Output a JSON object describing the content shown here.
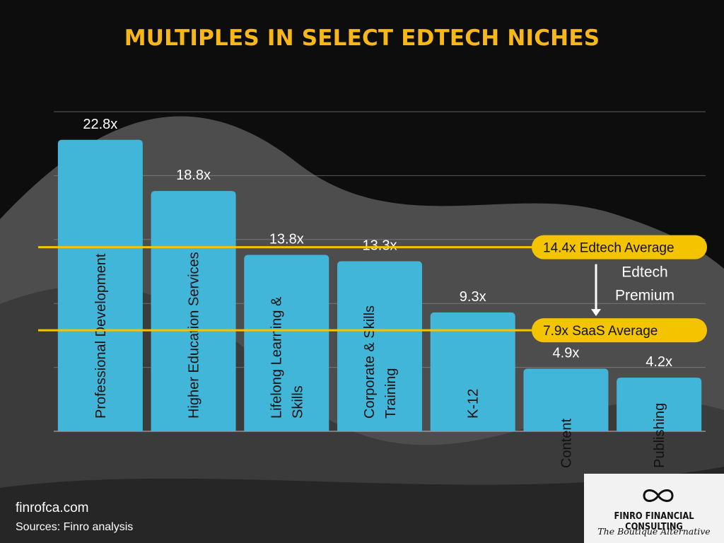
{
  "title": "MULTIPLES IN SELECT EDTECH NICHES",
  "chart_data": {
    "type": "bar",
    "categories": [
      "Professional Development",
      "Higher Education Services",
      "Lifelong Learning & Skills",
      "Corporate & Skills Training",
      "K-12",
      "Content",
      "Publishing"
    ],
    "category_lines": [
      [
        "Professional Development"
      ],
      [
        "Higher Education Services"
      ],
      [
        "Lifelong Learning &",
        "Skills"
      ],
      [
        "Corporate & Skills",
        "Training"
      ],
      [
        "K-12"
      ],
      [
        "Content"
      ],
      [
        "Publishing"
      ]
    ],
    "values": [
      22.8,
      18.8,
      13.8,
      13.3,
      9.3,
      4.9,
      4.2
    ],
    "value_labels": [
      "22.8x",
      "18.8x",
      "13.8x",
      "13.3x",
      "9.3x",
      "4.9x",
      "4.2x"
    ],
    "ylim": [
      0,
      25
    ],
    "gridlines": [
      5,
      10,
      15,
      20,
      25
    ],
    "reference_lines": [
      {
        "value": 14.4,
        "label": "14.4x Edtech Average"
      },
      {
        "value": 7.9,
        "label": "7.9x SaaS Average"
      }
    ],
    "premium_annotation": [
      "Edtech",
      "Premium"
    ],
    "colors": {
      "bar": "#41b6d9",
      "reference": "#f5c400",
      "title": "#f7b718",
      "grid": "#9a9a9a"
    }
  },
  "footer": {
    "site": "finrofca.com",
    "sources": "Sources: Finro analysis"
  },
  "brand": {
    "name": "FINRO FINANCIAL CONSULTING",
    "tagline": "The Boutique Alternative",
    "icon": "infinity-icon"
  }
}
